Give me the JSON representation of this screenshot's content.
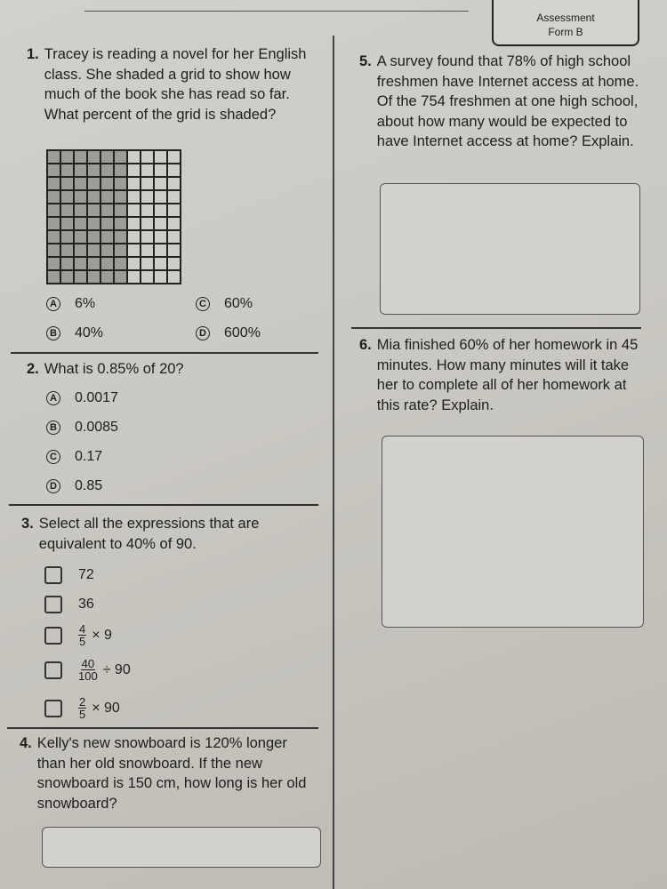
{
  "header": {
    "assessment": "Assessment",
    "form": "Form B"
  },
  "questions": {
    "q1": {
      "number": "1.",
      "text": "Tracey is reading a novel for her English class. She shaded a grid to show how much of the book she has read so far. What percent of the grid is shaded?",
      "grid": {
        "rows": 10,
        "cols": 10,
        "shaded_cols": 6
      },
      "options": [
        {
          "letter": "A",
          "value": "6%"
        },
        {
          "letter": "B",
          "value": "40%"
        },
        {
          "letter": "C",
          "value": "60%"
        },
        {
          "letter": "D",
          "value": "600%"
        }
      ]
    },
    "q2": {
      "number": "2.",
      "text": "What is 0.85% of 20?",
      "options": [
        {
          "letter": "A",
          "value": "0.0017"
        },
        {
          "letter": "B",
          "value": "0.0085"
        },
        {
          "letter": "C",
          "value": "0.17"
        },
        {
          "letter": "D",
          "value": "0.85"
        }
      ]
    },
    "q3": {
      "number": "3.",
      "text": "Select all the expressions that are equivalent to 40% of 90.",
      "options": [
        {
          "value": "72"
        },
        {
          "value": "36"
        },
        {
          "num": "4",
          "den": "5",
          "rest": "× 9"
        },
        {
          "num": "40",
          "den": "100",
          "rest": "÷ 90"
        },
        {
          "num": "2",
          "den": "5",
          "rest": "× 90"
        }
      ]
    },
    "q4": {
      "number": "4.",
      "text": "Kelly's new snowboard is 120% longer than her old snowboard. If the new snowboard is 150 cm, how long is her old snowboard?"
    },
    "q5": {
      "number": "5.",
      "text": "A survey found that 78% of high school freshmen have Internet access at home. Of the 754 freshmen at one high school, about how many would be expected to have Internet access at home? Explain."
    },
    "q6": {
      "number": "6.",
      "text": "Mia finished 60% of her homework in 45 minutes. How many minutes will it take her to complete all of her homework at this rate? Explain."
    }
  }
}
